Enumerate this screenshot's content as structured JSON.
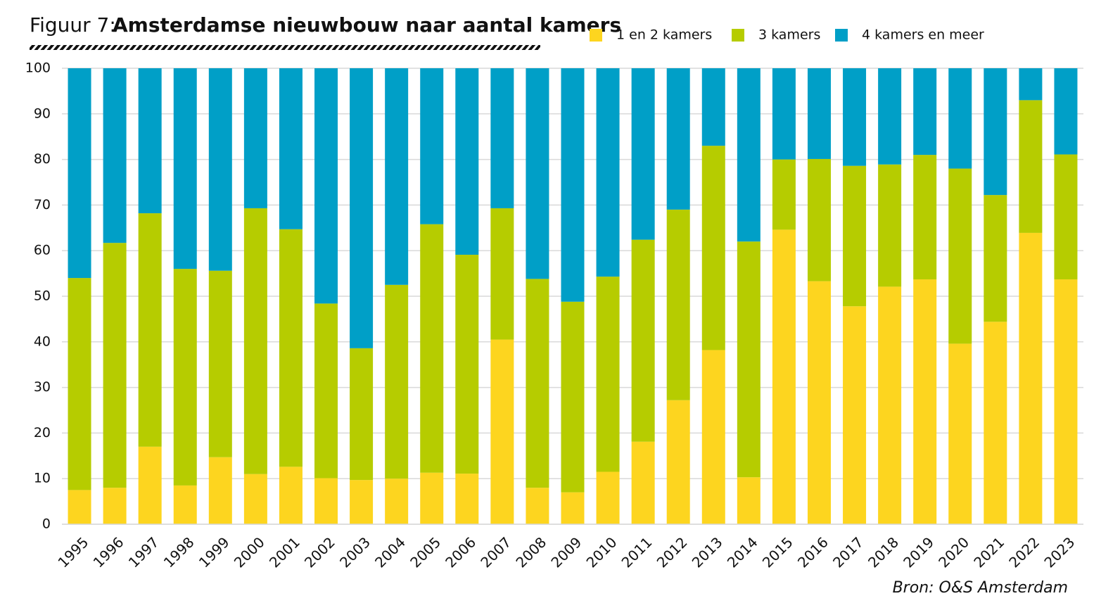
{
  "chart_data": {
    "type": "stacked_bar",
    "figure_label": "Figuur 7:",
    "title": "Amsterdamse nieuwbouw naar aantal kamers",
    "source": "Bron: O&S Amsterdam",
    "categories": [
      "1995",
      "1996",
      "1997",
      "1998",
      "1999",
      "2000",
      "2001",
      "2002",
      "2003",
      "2004",
      "2005",
      "2006",
      "2007",
      "2008",
      "2009",
      "2010",
      "2011",
      "2012",
      "2013",
      "2014",
      "2015",
      "2016",
      "2017",
      "2018",
      "2019",
      "2020",
      "2021",
      "2022",
      "2023"
    ],
    "series": [
      {
        "name": "1 en 2 kamers",
        "color": "#fdd51f",
        "values": [
          7.5,
          8,
          17,
          8.5,
          14.7,
          11,
          12.6,
          10.1,
          9.7,
          10,
          11.3,
          11.1,
          40.5,
          8,
          7,
          11.5,
          18.1,
          27.2,
          38.2,
          10.3,
          64.6,
          53.3,
          47.8,
          52.1,
          53.7,
          39.6,
          44.4,
          63.9,
          53.7
        ]
      },
      {
        "name": "3 kamers",
        "color": "#b6cc00",
        "values": [
          46.5,
          53.7,
          51.2,
          47.5,
          40.9,
          58.3,
          52.1,
          38.3,
          28.9,
          42.5,
          54.5,
          48,
          28.8,
          45.8,
          41.8,
          42.8,
          44.3,
          41.8,
          44.8,
          51.7,
          15.4,
          26.8,
          30.8,
          26.8,
          27.3,
          38.4,
          27.8,
          29.1,
          27.4
        ]
      },
      {
        "name": "4 kamers en meer",
        "color": "#009fc7",
        "values": [
          46,
          38.3,
          31.8,
          44,
          44.4,
          30.7,
          35.3,
          51.6,
          61.4,
          47.5,
          34.2,
          40.9,
          30.7,
          46.2,
          51.2,
          45.7,
          37.6,
          31,
          17,
          38,
          20,
          19.9,
          21.4,
          21.1,
          19,
          22,
          27.8,
          7,
          18.9
        ]
      }
    ],
    "ylim": [
      0,
      100
    ],
    "yticks": [
      0,
      10,
      20,
      30,
      40,
      50,
      60,
      70,
      80,
      90,
      100
    ],
    "grid": true
  }
}
